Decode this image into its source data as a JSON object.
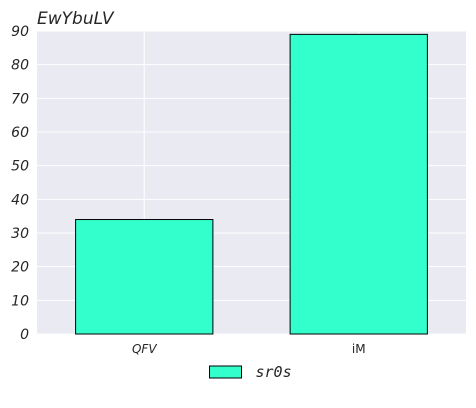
{
  "chart_data": {
    "type": "bar",
    "title": "EwYbuLV",
    "xlabel": "",
    "ylabel": "",
    "categories": [
      "QFV",
      "iM"
    ],
    "series": [
      {
        "name": "sr0s",
        "values": [
          34,
          89
        ]
      }
    ],
    "ylim": [
      0,
      90
    ],
    "yticks": [
      0,
      10,
      20,
      30,
      40,
      50,
      60,
      70,
      80,
      90
    ],
    "grid": true,
    "legend_position": "bottom-center",
    "colors": {
      "bar_fill": "#33ffcc",
      "bar_edge": "#000000",
      "plot_background": "#eaeaf2",
      "grid": "#ffffff"
    }
  }
}
